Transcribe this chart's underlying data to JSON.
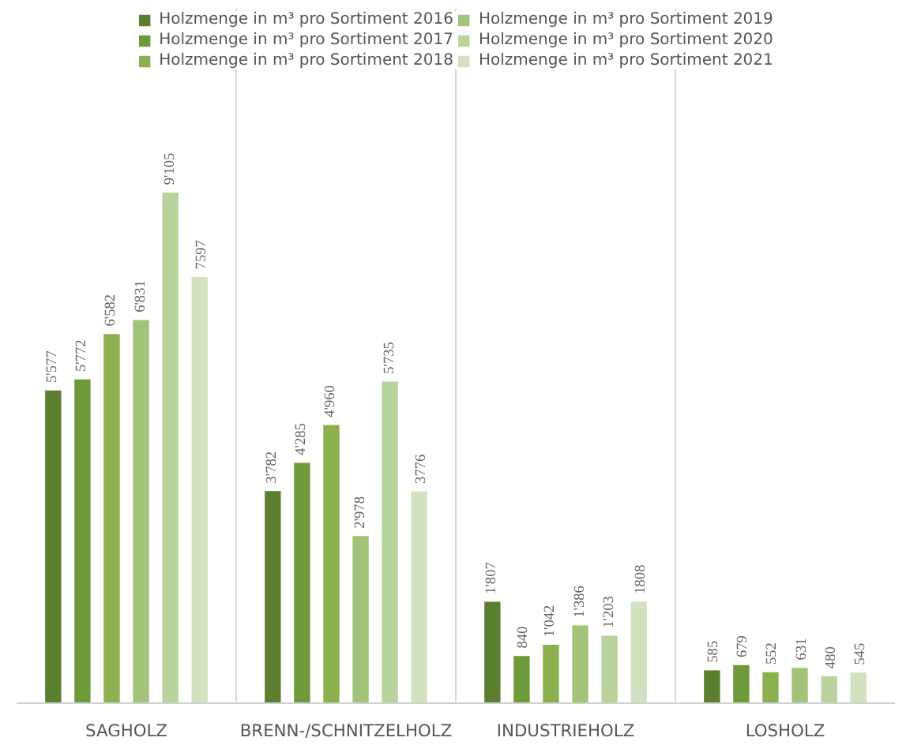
{
  "chart_data": {
    "type": "bar",
    "categories": [
      "SAGHOLZ",
      "BRENN-/SCHNITZELHOLZ",
      "INDUSTRIEHOLZ",
      "LOSHOLZ"
    ],
    "series": [
      {
        "name": "Holzmenge in m³ pro Sortiment 2016",
        "color": "#5b7f2f",
        "values": [
          5577,
          3782,
          1807,
          585
        ],
        "value_labels": [
          "5'577",
          "3'782",
          "1'807",
          "585"
        ]
      },
      {
        "name": "Holzmenge in m³ pro Sortiment 2017",
        "color": "#6f9a3a",
        "values": [
          5772,
          4285,
          840,
          679
        ],
        "value_labels": [
          "5'772",
          "4'285",
          "840",
          "679"
        ]
      },
      {
        "name": "Holzmenge in m³ pro Sortiment 2018",
        "color": "#8db04f",
        "values": [
          6582,
          4960,
          1042,
          552
        ],
        "value_labels": [
          "6'582",
          "4'960",
          "1'042",
          "552"
        ]
      },
      {
        "name": "Holzmenge in m³ pro Sortiment 2019",
        "color": "#a3c37a",
        "values": [
          6831,
          2978,
          1386,
          631
        ],
        "value_labels": [
          "6'831",
          "2'978",
          "1'386",
          "631"
        ]
      },
      {
        "name": "Holzmenge in m³ pro Sortiment 2020",
        "color": "#b8d39c",
        "values": [
          9105,
          5735,
          1203,
          480
        ],
        "value_labels": [
          "9'105",
          "5'735",
          "1'203",
          "480"
        ]
      },
      {
        "name": "Holzmenge in m³ pro Sortiment 2021",
        "color": "#d2e2c0",
        "values": [
          7597,
          3776,
          1808,
          545
        ],
        "value_labels": [
          "7597",
          "3776",
          "1808",
          "545"
        ]
      }
    ],
    "legend": "top"
  }
}
